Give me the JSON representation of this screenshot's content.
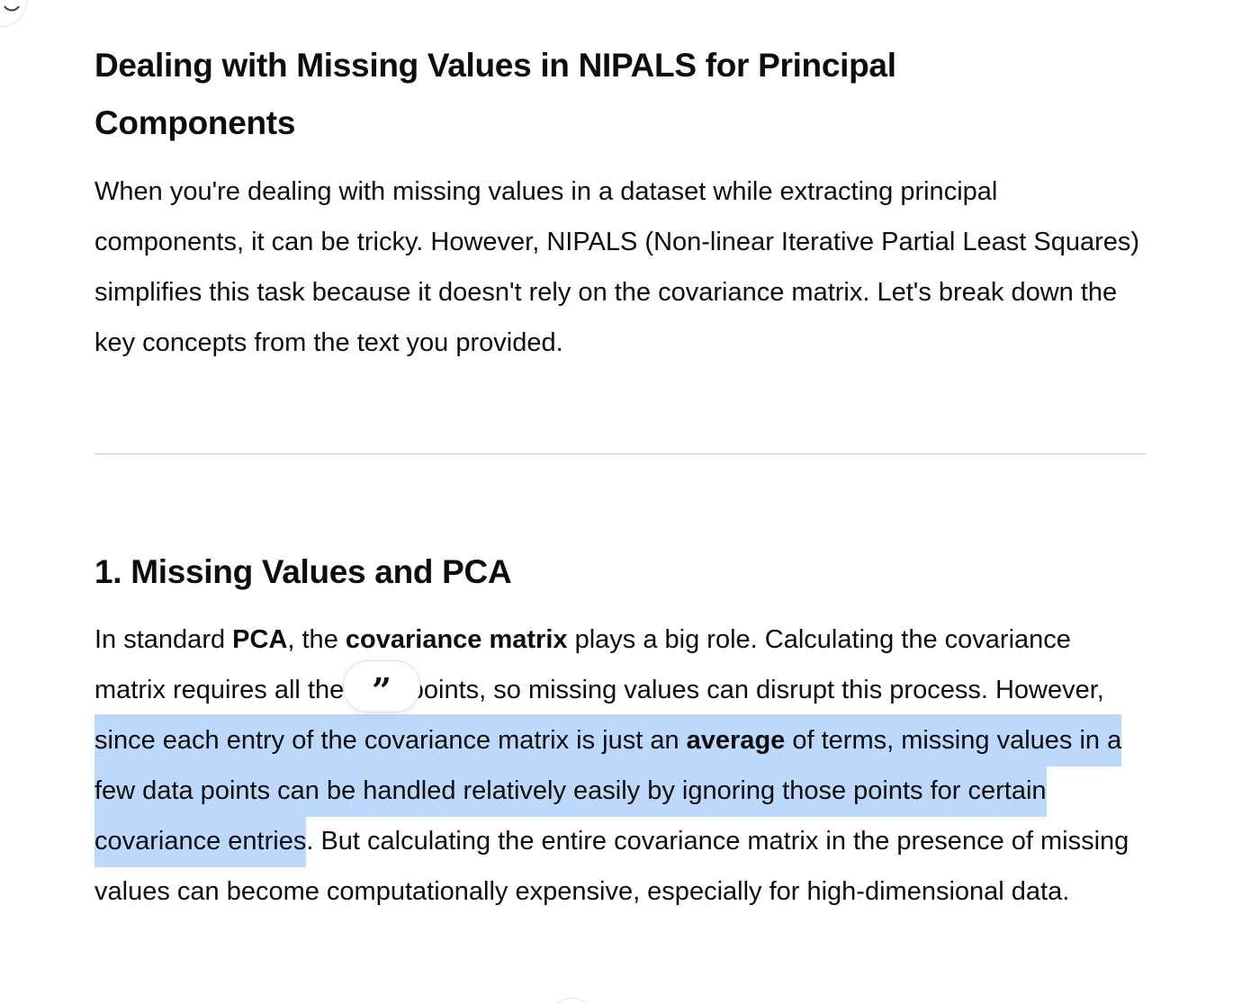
{
  "message": {
    "title": "Dealing with Missing Values in NIPALS for Principal Components",
    "intro": "When you're dealing with missing values in a dataset while extracting principal components, it can be tricky. However, NIPALS (Non-linear Iterative Partial Least Squares) simplifies this task because it doesn't rely on the covariance matrix. Let's break down the key concepts from the text you provided.",
    "section_title": "1. Missing Values and PCA",
    "body": {
      "t1": "In standard ",
      "b1": "PCA",
      "t2": ", the ",
      "b2": "covariance matrix",
      "t3": " plays a big role. Calculating the covariance matrix requires all the data points, so missing values can disrupt this process. However, ",
      "h1": "since each entry of the covariance matrix is just an ",
      "hb": "average",
      "h2": " of terms, missing values in a few data points can be handled relatively easily by ignoring those points for certain covariance entries",
      "t4": ". But calculating the entire covariance matrix in the presence of missing values can become computationally expensive, especially for high-dimensional data."
    }
  },
  "selection_toolbar": {
    "quote_glyph": "”",
    "icon": "quote-icon"
  },
  "colors": {
    "highlight": "#bcd8fb",
    "text": "#0d0d0d",
    "divider": "#cfcfcf"
  }
}
